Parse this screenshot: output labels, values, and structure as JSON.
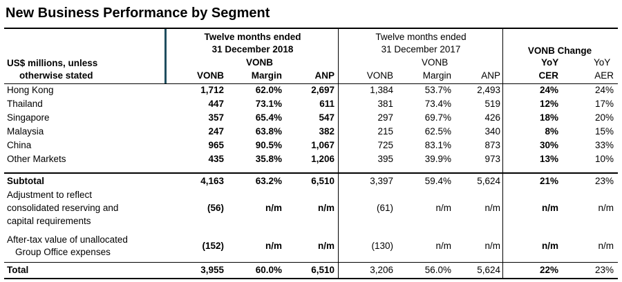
{
  "title": "New Business Performance by Segment",
  "header": {
    "label_line1": "US$ millions, unless",
    "label_line2": "otherwise stated",
    "group2018_line1": "Twelve months ended",
    "group2018_line2": "31 December 2018",
    "group2017_line1": "Twelve months ended",
    "group2017_line2": "31 December 2017",
    "vonb_top": "VONB",
    "change_title": "VONB Change",
    "yoy1": "YoY",
    "yoy2": "YoY",
    "cols": [
      "VONB",
      "Margin",
      "ANP",
      "VONB",
      "Margin",
      "ANP",
      "CER",
      "AER"
    ]
  },
  "rows": [
    {
      "label": "Hong Kong",
      "values": [
        "1,712",
        "62.0%",
        "2,697",
        "1,384",
        "53.7%",
        "2,493",
        "24%",
        "24%"
      ]
    },
    {
      "label": "Thailand",
      "values": [
        "447",
        "73.1%",
        "611",
        "381",
        "73.4%",
        "519",
        "12%",
        "17%"
      ]
    },
    {
      "label": "Singapore",
      "values": [
        "357",
        "65.4%",
        "547",
        "297",
        "69.7%",
        "426",
        "18%",
        "20%"
      ]
    },
    {
      "label": "Malaysia",
      "values": [
        "247",
        "63.8%",
        "382",
        "215",
        "62.5%",
        "340",
        "8%",
        "15%"
      ]
    },
    {
      "label": "China",
      "values": [
        "965",
        "90.5%",
        "1,067",
        "725",
        "83.1%",
        "873",
        "30%",
        "33%"
      ]
    },
    {
      "label": "Other Markets",
      "values": [
        "435",
        "35.8%",
        "1,206",
        "395",
        "39.9%",
        "973",
        "13%",
        "10%"
      ]
    }
  ],
  "subtotal": {
    "label": "Subtotal",
    "values": [
      "4,163",
      "63.2%",
      "6,510",
      "3,397",
      "59.4%",
      "5,624",
      "21%",
      "23%"
    ]
  },
  "adjustment": {
    "line1": "Adjustment to reflect",
    "line2": "consolidated reserving and",
    "line3": "capital requirements",
    "values": [
      "(56)",
      "n/m",
      "n/m",
      "(61)",
      "n/m",
      "n/m",
      "n/m",
      "n/m"
    ]
  },
  "aftertax": {
    "line1": "After-tax value of unallocated",
    "line2": "Group Office expenses",
    "values": [
      "(152)",
      "n/m",
      "n/m",
      "(130)",
      "n/m",
      "n/m",
      "n/m",
      "n/m"
    ]
  },
  "total": {
    "label": "Total",
    "values": [
      "3,955",
      "60.0%",
      "6,510",
      "3,206",
      "56.0%",
      "5,624",
      "22%",
      "23%"
    ]
  }
}
